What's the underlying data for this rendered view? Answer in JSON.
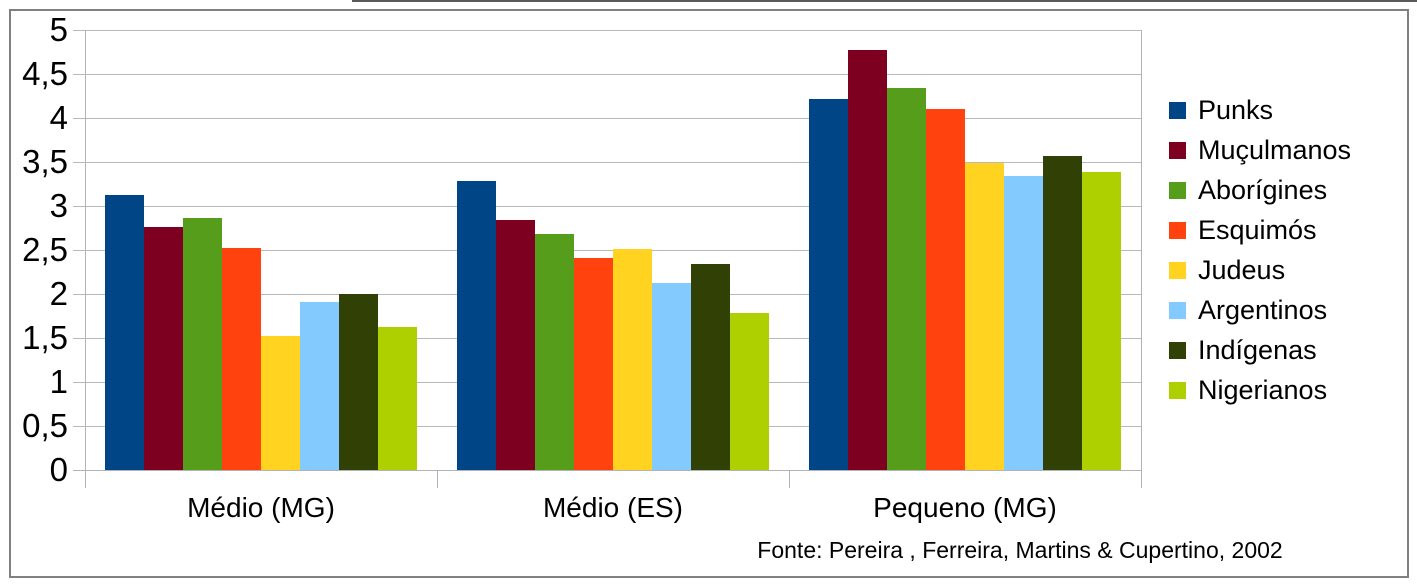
{
  "chart_data": {
    "type": "bar",
    "title": "",
    "categories": [
      "Médio (MG)",
      "Médio (ES)",
      "Pequeno (MG)"
    ],
    "series": [
      {
        "name": "Punks",
        "color": "#004586",
        "values": [
          3.12,
          3.28,
          4.22
        ]
      },
      {
        "name": "Muçulmanos",
        "color": "#7e0021",
        "values": [
          2.76,
          2.84,
          4.77
        ]
      },
      {
        "name": "Aborígines",
        "color": "#579d1c",
        "values": [
          2.86,
          2.68,
          4.34
        ]
      },
      {
        "name": "Esquimós",
        "color": "#ff420e",
        "values": [
          2.52,
          2.41,
          4.1
        ]
      },
      {
        "name": "Judeus",
        "color": "#ffd320",
        "values": [
          1.52,
          2.51,
          3.49
        ]
      },
      {
        "name": "Argentinos",
        "color": "#83caff",
        "values": [
          1.91,
          2.12,
          3.34
        ]
      },
      {
        "name": "Indígenas",
        "color": "#314004",
        "values": [
          2.0,
          2.34,
          3.57
        ]
      },
      {
        "name": "Nigerianos",
        "color": "#aecf00",
        "values": [
          1.62,
          1.78,
          3.39
        ]
      }
    ],
    "xlabel": "",
    "ylabel": "",
    "ylim": [
      0,
      5
    ],
    "ytick_step": 0.5,
    "ytick_labels": [
      "0",
      "0,5",
      "1",
      "1,5",
      "2",
      "2,5",
      "3",
      "3,5",
      "4",
      "4,5",
      "5"
    ],
    "grid": true,
    "legend_position": "right",
    "gridline_color": "#b9b9b9",
    "axis_color": "#b3b3b3"
  },
  "footer": {
    "source_text": "Fonte: Pereira , Ferreira, Martins & Cupertino, 2002"
  }
}
